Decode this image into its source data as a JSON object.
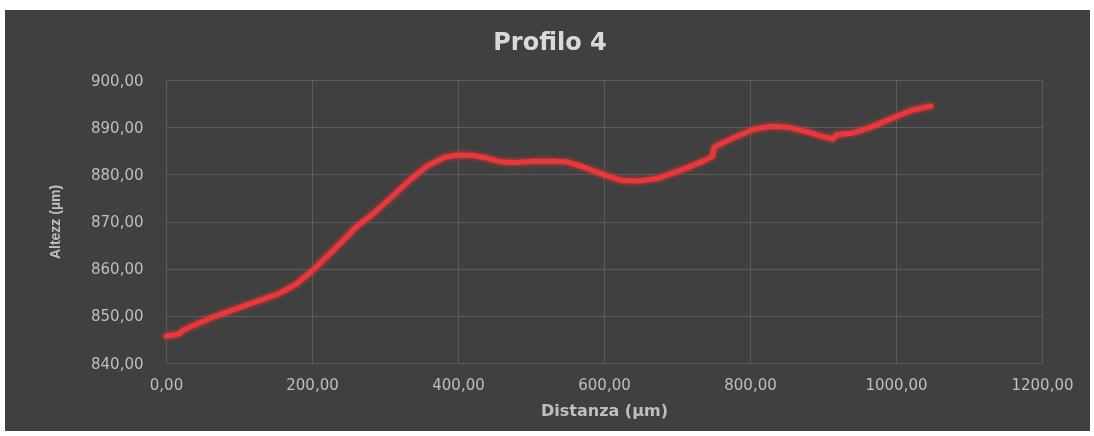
{
  "chart_data": {
    "type": "line",
    "title": "Profilo 4",
    "xlabel": "Distanza (µm)",
    "ylabel": "Altezz (µm)",
    "x": [
      0,
      17,
      24,
      65,
      114,
      153,
      178,
      200,
      221,
      241,
      260,
      285,
      309,
      334,
      358,
      382,
      399,
      421,
      441,
      460,
      480,
      504,
      529,
      551,
      576,
      600,
      624,
      648,
      673,
      707,
      736,
      749,
      751,
      774,
      804,
      828,
      852,
      876,
      900,
      914,
      918,
      939,
      964,
      998,
      1022,
      1048
    ],
    "series": [
      {
        "color": "#e23a3e",
        "values": [
          845.7,
          846.1,
          847.0,
          849.8,
          852.5,
          854.6,
          856.7,
          859.5,
          862.7,
          865.7,
          868.8,
          871.8,
          875.2,
          878.8,
          881.8,
          883.6,
          884.1,
          884.0,
          883.4,
          882.6,
          882.5,
          882.8,
          882.8,
          882.6,
          881.3,
          879.9,
          878.7,
          878.6,
          879.1,
          881.0,
          882.8,
          883.8,
          885.8,
          887.5,
          889.5,
          890.2,
          890.0,
          889.1,
          888.0,
          887.5,
          888.4,
          888.7,
          889.9,
          892.1,
          893.6,
          894.5
        ]
      }
    ],
    "xlim": [
      0,
      1200
    ],
    "xticks": [
      {
        "value": 0,
        "label": "0,00"
      },
      {
        "value": 200,
        "label": "200,00"
      },
      {
        "value": 400,
        "label": "400,00"
      },
      {
        "value": 600,
        "label": "600,00"
      },
      {
        "value": 800,
        "label": "800,00"
      },
      {
        "value": 1000,
        "label": "1000,00"
      },
      {
        "value": 1200,
        "label": "1200,00"
      }
    ],
    "ylim": [
      840,
      900
    ],
    "yticks": [
      {
        "value": 840,
        "label": "840,00"
      },
      {
        "value": 850,
        "label": "850,00"
      },
      {
        "value": 860,
        "label": "860,00"
      },
      {
        "value": 870,
        "label": "870,00"
      },
      {
        "value": 880,
        "label": "880,00"
      },
      {
        "value": 890,
        "label": "890,00"
      },
      {
        "value": 900,
        "label": "900,00"
      }
    ],
    "grid": true
  }
}
